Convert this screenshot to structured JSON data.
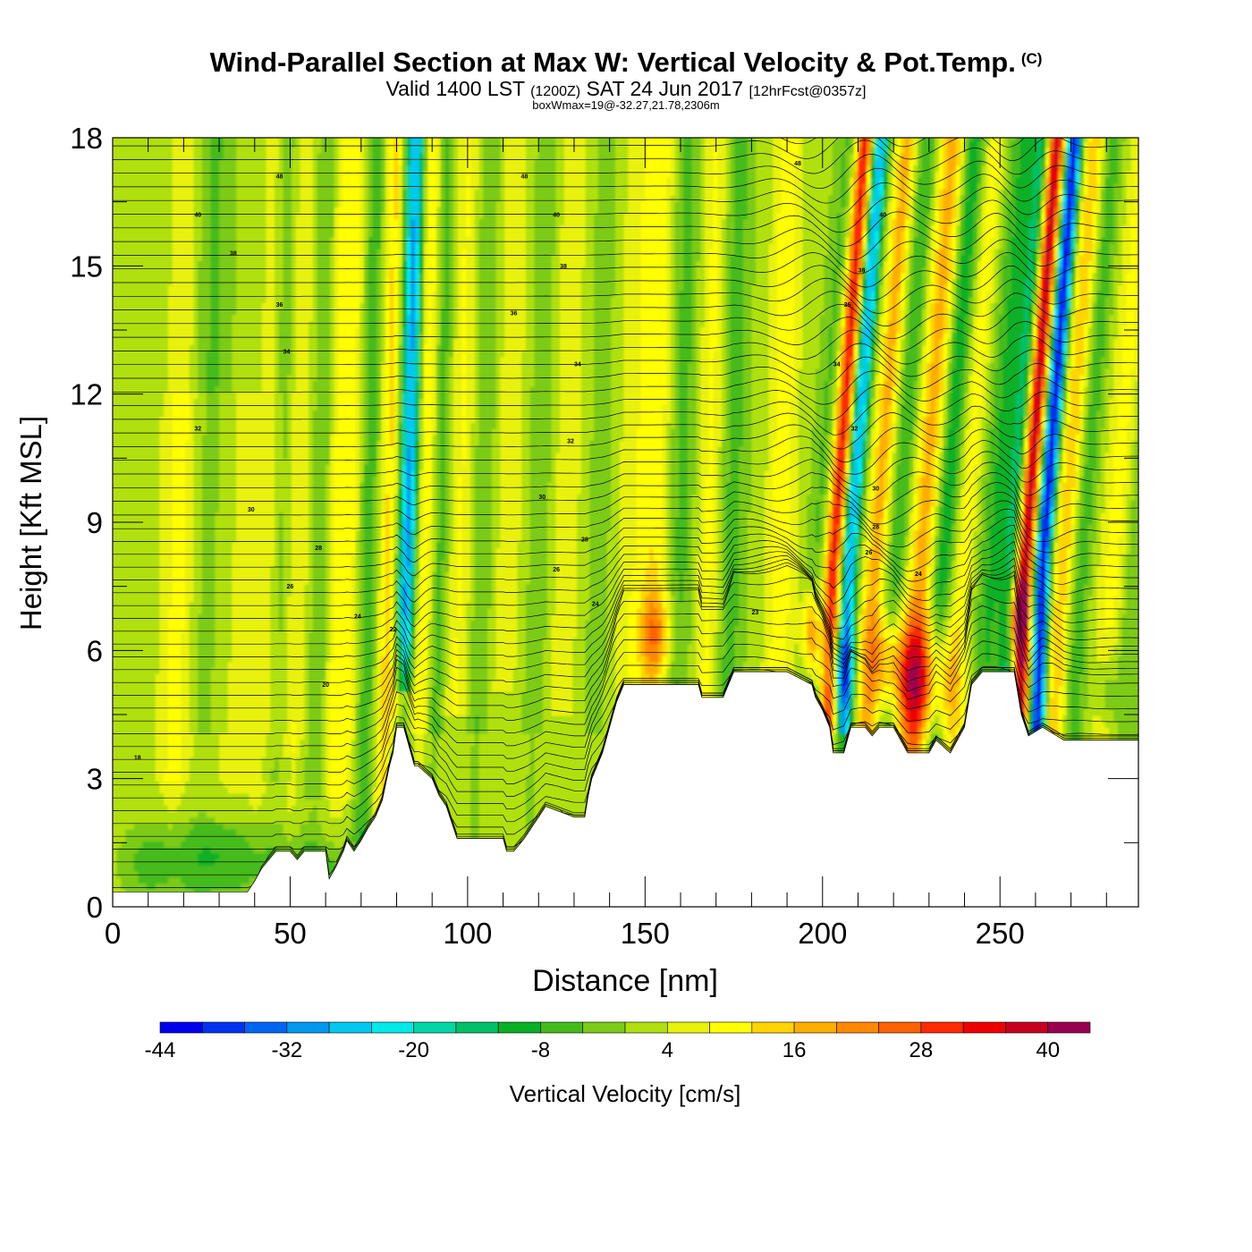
{
  "title": {
    "main": "Wind-Parallel Section at Max W: Vertical Velocity & Pot.Temp.",
    "copyright": "(C)",
    "valid_prefix": "Valid 1400 LST",
    "valid_utc": "(1200Z)",
    "valid_date": "SAT 24 Jun 2017",
    "forecast": "[12hrFcst@0357z]",
    "subtitle": "boxWmax=19@-32.27,21.78,2306m"
  },
  "chart_data": {
    "type": "heatmap",
    "xlabel": "Distance [nm]",
    "ylabel": "Height [Kft MSL]",
    "xlim": [
      0,
      289
    ],
    "ylim": [
      0,
      18
    ],
    "x_ticks": [
      "0",
      "50",
      "100",
      "150",
      "200",
      "250"
    ],
    "x_tick_values": [
      0,
      50,
      100,
      150,
      200,
      250
    ],
    "y_ticks": [
      "0",
      "3",
      "6",
      "9",
      "12",
      "15",
      "18"
    ],
    "y_tick_values": [
      0,
      3,
      6,
      9,
      12,
      15,
      18
    ],
    "colorbar": {
      "label": "Vertical Velocity [cm/s]",
      "tick_labels": [
        "-44",
        "-32",
        "-20",
        "-8",
        "4",
        "16",
        "28",
        "40"
      ],
      "tick_values": [
        -44,
        -32,
        -20,
        -8,
        4,
        16,
        28,
        40
      ],
      "levels": [
        -44,
        -40,
        -36,
        -32,
        -28,
        -24,
        -20,
        -16,
        -12,
        -8,
        -4,
        0,
        4,
        8,
        12,
        16,
        20,
        24,
        28,
        32,
        36,
        40,
        44
      ],
      "colors": [
        "#0000ee",
        "#0033f0",
        "#0066f2",
        "#0099f2",
        "#00c8f0",
        "#00eaea",
        "#00d6a6",
        "#00c066",
        "#08b026",
        "#44bb1c",
        "#7ccb18",
        "#b0e010",
        "#e8f20a",
        "#ffff00",
        "#ffd400",
        "#ffae00",
        "#ff8800",
        "#ff6200",
        "#ff2a00",
        "#ee0000",
        "#c80020",
        "#9a0050"
      ]
    },
    "terrain_kft": [
      [
        0,
        0.35
      ],
      [
        38,
        0.35
      ],
      [
        40,
        0.6
      ],
      [
        42,
        0.9
      ],
      [
        44,
        1.1
      ],
      [
        46,
        1.3
      ],
      [
        50,
        1.3
      ],
      [
        52,
        1.1
      ],
      [
        54,
        1.3
      ],
      [
        60,
        1.3
      ],
      [
        61,
        0.65
      ],
      [
        63,
        0.95
      ],
      [
        65,
        1.3
      ],
      [
        66,
        1.55
      ],
      [
        68,
        1.3
      ],
      [
        70,
        1.55
      ],
      [
        72,
        1.85
      ],
      [
        74,
        2.1
      ],
      [
        76,
        2.5
      ],
      [
        77,
        2.9
      ],
      [
        78,
        3.3
      ],
      [
        79,
        3.6
      ],
      [
        80,
        4.2
      ],
      [
        82,
        4.2
      ],
      [
        84,
        3.6
      ],
      [
        85,
        3.3
      ],
      [
        86,
        3.3
      ],
      [
        90,
        3.0
      ],
      [
        92,
        2.6
      ],
      [
        94,
        2.35
      ],
      [
        95,
        2.1
      ],
      [
        96,
        1.85
      ],
      [
        97,
        1.6
      ],
      [
        110,
        1.6
      ],
      [
        111,
        1.3
      ],
      [
        113,
        1.3
      ],
      [
        116,
        1.6
      ],
      [
        118,
        1.85
      ],
      [
        120,
        2.1
      ],
      [
        122,
        2.35
      ],
      [
        130,
        2.1
      ],
      [
        133,
        2.1
      ],
      [
        134,
        2.6
      ],
      [
        135,
        3.0
      ],
      [
        138,
        3.6
      ],
      [
        140,
        4.2
      ],
      [
        142,
        4.8
      ],
      [
        144,
        5.2
      ],
      [
        150,
        5.2
      ],
      [
        160,
        5.2
      ],
      [
        165,
        5.2
      ],
      [
        166,
        4.9
      ],
      [
        172,
        4.9
      ],
      [
        175,
        5.5
      ],
      [
        190,
        5.5
      ],
      [
        197,
        5.2
      ],
      [
        198,
        4.9
      ],
      [
        200,
        4.6
      ],
      [
        202,
        4.2
      ],
      [
        203,
        3.6
      ],
      [
        206,
        3.6
      ],
      [
        208,
        4.2
      ],
      [
        212,
        4.2
      ],
      [
        214,
        4.0
      ],
      [
        216,
        4.2
      ],
      [
        220,
        4.2
      ],
      [
        224,
        3.6
      ],
      [
        228,
        3.6
      ],
      [
        230,
        3.6
      ],
      [
        232,
        3.9
      ],
      [
        236,
        3.6
      ],
      [
        240,
        4.2
      ],
      [
        242,
        5.2
      ],
      [
        245,
        5.5
      ],
      [
        254,
        5.5
      ],
      [
        256,
        4.5
      ],
      [
        258,
        4.0
      ],
      [
        262,
        4.2
      ],
      [
        266,
        4.0
      ],
      [
        268,
        3.9
      ],
      [
        289,
        3.9
      ]
    ],
    "isentrope_labels": [
      {
        "x": 47,
        "y": 17.1,
        "text": "48"
      },
      {
        "x": 24,
        "y": 16.2,
        "text": "40"
      },
      {
        "x": 34,
        "y": 15.3,
        "text": "38"
      },
      {
        "x": 47,
        "y": 14.1,
        "text": "36"
      },
      {
        "x": 49,
        "y": 13.0,
        "text": "34"
      },
      {
        "x": 24,
        "y": 11.2,
        "text": "32"
      },
      {
        "x": 39,
        "y": 9.3,
        "text": "30"
      },
      {
        "x": 58,
        "y": 8.4,
        "text": "28"
      },
      {
        "x": 50,
        "y": 7.5,
        "text": "26"
      },
      {
        "x": 69,
        "y": 6.8,
        "text": "24"
      },
      {
        "x": 79,
        "y": 6.5,
        "text": "22"
      },
      {
        "x": 60,
        "y": 5.2,
        "text": "20"
      },
      {
        "x": 7,
        "y": 3.5,
        "text": "18"
      },
      {
        "x": 116,
        "y": 17.1,
        "text": "48"
      },
      {
        "x": 125,
        "y": 16.2,
        "text": "40"
      },
      {
        "x": 127,
        "y": 15.0,
        "text": "38"
      },
      {
        "x": 113,
        "y": 13.9,
        "text": "36"
      },
      {
        "x": 131,
        "y": 12.7,
        "text": "34"
      },
      {
        "x": 129,
        "y": 10.9,
        "text": "32"
      },
      {
        "x": 121,
        "y": 9.6,
        "text": "30"
      },
      {
        "x": 133,
        "y": 8.6,
        "text": "28"
      },
      {
        "x": 125,
        "y": 7.9,
        "text": "26"
      },
      {
        "x": 136,
        "y": 7.1,
        "text": "24"
      },
      {
        "x": 181,
        "y": 6.9,
        "text": "23"
      },
      {
        "x": 193,
        "y": 17.4,
        "text": "48"
      },
      {
        "x": 217,
        "y": 16.2,
        "text": "40"
      },
      {
        "x": 211,
        "y": 14.9,
        "text": "38"
      },
      {
        "x": 207,
        "y": 14.1,
        "text": "36"
      },
      {
        "x": 204,
        "y": 12.7,
        "text": "34"
      },
      {
        "x": 209,
        "y": 11.2,
        "text": "32"
      },
      {
        "x": 215,
        "y": 9.8,
        "text": "30"
      },
      {
        "x": 215,
        "y": 8.9,
        "text": "28"
      },
      {
        "x": 213,
        "y": 8.3,
        "text": "26"
      },
      {
        "x": 227,
        "y": 7.8,
        "text": "24"
      }
    ]
  }
}
